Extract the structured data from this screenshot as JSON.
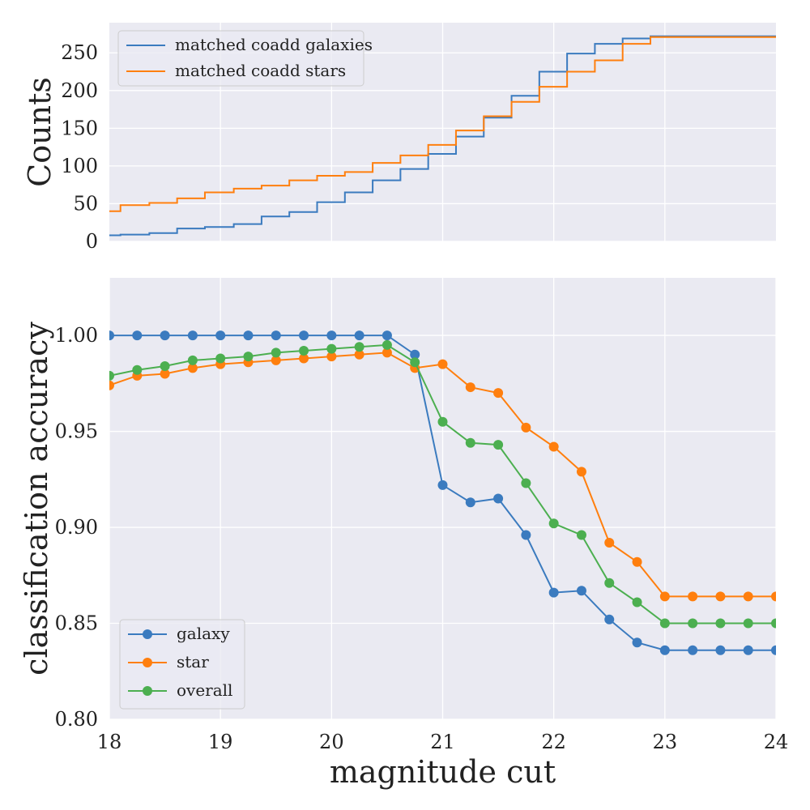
{
  "colors": {
    "background": "#eaeaf2",
    "grid": "#ffffff",
    "galaxy": "#3b7bbf",
    "star": "#ff7f0e",
    "overall": "#4caf50"
  },
  "chart_data": [
    {
      "type": "line",
      "step": true,
      "title": "",
      "xlabel": "",
      "ylabel": "Counts",
      "xlim": [
        18,
        24
      ],
      "ylim": [
        0,
        290
      ],
      "x_ticks": [
        19,
        20,
        21,
        22,
        23
      ],
      "y_ticks": [
        0,
        50,
        100,
        150,
        200,
        250
      ],
      "y_tick_labels": [
        "0",
        "50",
        "100",
        "150",
        "200",
        "250"
      ],
      "grid": true,
      "legend_position": "top-left",
      "x": [
        18.0,
        18.1,
        18.36,
        18.61,
        18.86,
        19.12,
        19.37,
        19.62,
        19.87,
        20.12,
        20.37,
        20.62,
        20.87,
        21.12,
        21.37,
        21.62,
        21.87,
        22.12,
        22.37,
        22.62,
        22.87
      ],
      "series": [
        {
          "name": "matched coadd galaxies",
          "color_key": "galaxy",
          "values": [
            8,
            9,
            11,
            17,
            19,
            23,
            33,
            39,
            52,
            65,
            81,
            96,
            116,
            139,
            164,
            193,
            225,
            249,
            262,
            269,
            272
          ]
        },
        {
          "name": "matched coadd stars",
          "color_key": "star",
          "values": [
            40,
            48,
            51,
            57,
            65,
            70,
            74,
            81,
            87,
            92,
            104,
            114,
            128,
            147,
            166,
            185,
            205,
            225,
            240,
            262,
            271
          ]
        }
      ]
    },
    {
      "type": "line",
      "title": "",
      "xlabel": "magnitude cut",
      "ylabel": "classification accuracy",
      "xlim": [
        18,
        24
      ],
      "ylim": [
        0.8,
        1.03
      ],
      "x_ticks": [
        18,
        19,
        20,
        21,
        22,
        23,
        24
      ],
      "x_tick_labels": [
        "18",
        "19",
        "20",
        "21",
        "22",
        "23",
        "24"
      ],
      "y_ticks": [
        0.8,
        0.85,
        0.9,
        0.95,
        1.0
      ],
      "y_tick_labels": [
        "0.80",
        "0.85",
        "0.90",
        "0.95",
        "1.00"
      ],
      "grid": true,
      "legend_position": "bottom-left",
      "markers": true,
      "x": [
        18.0,
        18.25,
        18.5,
        18.75,
        19.0,
        19.25,
        19.5,
        19.75,
        20.0,
        20.25,
        20.5,
        20.75,
        21.0,
        21.25,
        21.5,
        21.75,
        22.0,
        22.25,
        22.5,
        22.75,
        23.0,
        23.25,
        23.5,
        23.75,
        24.0
      ],
      "series": [
        {
          "name": "galaxy",
          "color_key": "galaxy",
          "values": [
            1.0,
            1.0,
            1.0,
            1.0,
            1.0,
            1.0,
            1.0,
            1.0,
            1.0,
            1.0,
            1.0,
            0.99,
            0.922,
            0.913,
            0.915,
            0.896,
            0.866,
            0.867,
            0.852,
            0.84,
            0.836,
            0.836,
            0.836,
            0.836,
            0.836
          ]
        },
        {
          "name": "star",
          "color_key": "star",
          "values": [
            0.974,
            0.979,
            0.98,
            0.983,
            0.985,
            0.986,
            0.987,
            0.988,
            0.989,
            0.99,
            0.991,
            0.983,
            0.985,
            0.973,
            0.97,
            0.952,
            0.942,
            0.929,
            0.892,
            0.882,
            0.864,
            0.864,
            0.864,
            0.864,
            0.864
          ]
        },
        {
          "name": "overall",
          "color_key": "overall",
          "values": [
            0.979,
            0.982,
            0.984,
            0.987,
            0.988,
            0.989,
            0.991,
            0.992,
            0.993,
            0.994,
            0.995,
            0.986,
            0.955,
            0.944,
            0.943,
            0.923,
            0.902,
            0.896,
            0.871,
            0.861,
            0.85,
            0.85,
            0.85,
            0.85,
            0.85
          ]
        }
      ]
    }
  ]
}
